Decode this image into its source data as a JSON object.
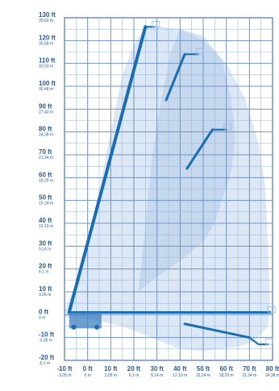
{
  "chart_data": {
    "type": "line",
    "title": "",
    "xlabel": "",
    "ylabel": "",
    "grid": true,
    "xlim": [
      -10,
      80
    ],
    "ylim": [
      -20,
      130
    ],
    "x_ticks": [
      {
        "ft": "-10 ft",
        "m": "-3,05 m"
      },
      {
        "ft": "0 ft",
        "m": "0 m"
      },
      {
        "ft": "10 ft",
        "m": "3,05 m"
      },
      {
        "ft": "20 ft",
        "m": "6,1 m"
      },
      {
        "ft": "30 ft",
        "m": "9,14 m"
      },
      {
        "ft": "40 ft",
        "m": "12,19 m"
      },
      {
        "ft": "50 ft",
        "m": "15,24 m"
      },
      {
        "ft": "60 ft",
        "m": "18,29 m"
      },
      {
        "ft": "70 ft",
        "m": "21,34 m"
      },
      {
        "ft": "80 ft",
        "m": "24,38 m"
      }
    ],
    "y_ticks": [
      {
        "ft": "130 ft",
        "m": "39,62 m"
      },
      {
        "ft": "120 ft",
        "m": "36,58 m"
      },
      {
        "ft": "110 ft",
        "m": "33,53 m"
      },
      {
        "ft": "100 ft",
        "m": "30,48 m"
      },
      {
        "ft": "90 ft",
        "m": "27,43 m"
      },
      {
        "ft": "80 ft",
        "m": "24,38 m"
      },
      {
        "ft": "70 ft",
        "m": "21,34 m"
      },
      {
        "ft": "60 ft",
        "m": "18,29 m"
      },
      {
        "ft": "50 ft",
        "m": "15,24 m"
      },
      {
        "ft": "40 ft",
        "m": "12,19 m"
      },
      {
        "ft": "30 ft",
        "m": "9,14 m"
      },
      {
        "ft": "20 ft",
        "m": "6,1 m"
      },
      {
        "ft": "10 ft",
        "m": "3,05 m"
      },
      {
        "ft": "0 ft",
        "m": "0 m"
      },
      {
        "ft": "-10 ft",
        "m": "-3,05 m"
      },
      {
        "ft": "-20 ft",
        "m": "-6,1 m"
      }
    ],
    "envelope": [
      [
        -10,
        2
      ],
      [
        -2,
        20
      ],
      [
        5,
        55
      ],
      [
        10,
        80
      ],
      [
        15,
        105
      ],
      [
        20,
        118
      ],
      [
        25,
        126
      ],
      [
        32,
        126
      ],
      [
        40,
        125
      ],
      [
        50,
        120
      ],
      [
        60,
        110
      ],
      [
        68,
        95
      ],
      [
        74,
        75
      ],
      [
        77,
        55
      ],
      [
        78,
        30
      ],
      [
        79,
        2
      ],
      [
        78,
        -5
      ],
      [
        72,
        -12
      ],
      [
        65,
        -14
      ],
      [
        50,
        -16
      ],
      [
        40,
        -15
      ],
      [
        30,
        -11
      ],
      [
        15,
        -5
      ],
      [
        0,
        -2
      ],
      [
        -10,
        -1
      ]
    ],
    "inner_envelope": [
      [
        40,
        125
      ],
      [
        50,
        122
      ],
      [
        58,
        112
      ],
      [
        62,
        95
      ],
      [
        64,
        78
      ],
      [
        62,
        62
      ],
      [
        58,
        50
      ],
      [
        55,
        40
      ],
      [
        50,
        32
      ],
      [
        42,
        25
      ],
      [
        35,
        20
      ],
      [
        28,
        15
      ],
      [
        22,
        10
      ],
      [
        28,
        70
      ],
      [
        32,
        95
      ],
      [
        36,
        115
      ]
    ],
    "positions": [
      {
        "name": "",
        "points": [
          [
            -8,
            1
          ],
          [
            25,
            126
          ],
          [
            29,
            126
          ]
        ]
      },
      {
        "name": "",
        "points": [
          [
            34,
            94
          ],
          [
            42,
            114
          ],
          [
            48,
            114
          ]
        ]
      },
      {
        "name": "",
        "points": [
          [
            43,
            64
          ],
          [
            54,
            81
          ],
          [
            60,
            81
          ]
        ]
      },
      {
        "name": "",
        "points": [
          [
            -8,
            1
          ],
          [
            79,
            1
          ]
        ]
      },
      {
        "name": "",
        "points": [
          [
            42,
            -4
          ],
          [
            70,
            -10
          ],
          [
            74,
            -13
          ],
          [
            78,
            -13
          ]
        ]
      }
    ],
    "base": {
      "x_from": -8,
      "x_to": 6,
      "y_from": -6,
      "y_to": 1
    }
  }
}
